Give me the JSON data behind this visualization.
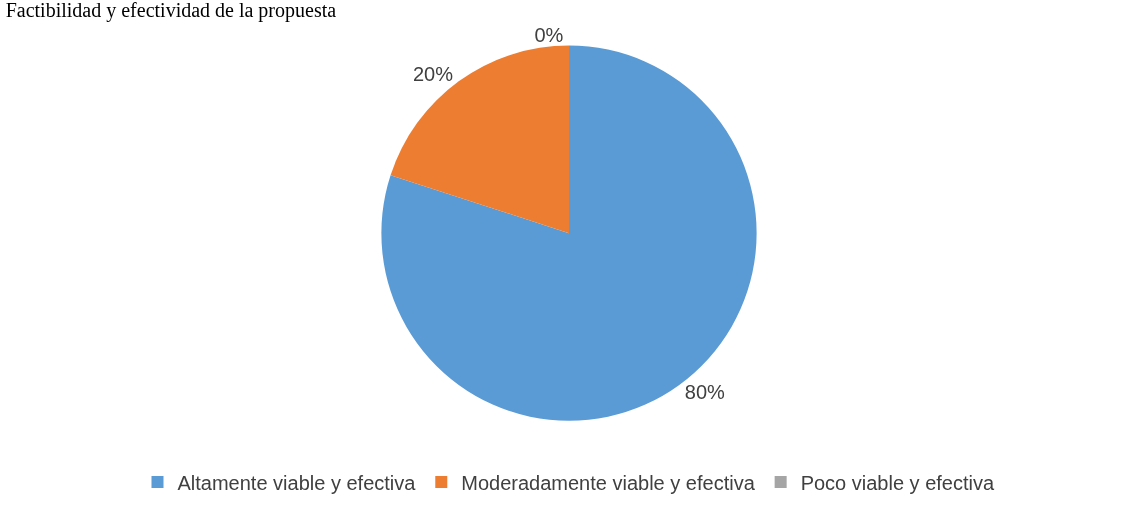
{
  "chart_data": {
    "type": "pie",
    "title": "Factibilidad y efectividad de la propuesta",
    "categories": [
      "Altamente viable y efectiva",
      "Moderadamente viable y efectiva",
      "Poco viable y efectiva"
    ],
    "values": [
      80,
      20,
      0
    ],
    "value_labels": [
      "80%",
      "20%",
      "0%"
    ],
    "colors": [
      "#5b9bd5",
      "#ed7d31",
      "#a5a5a5"
    ],
    "legend": "bottom"
  }
}
